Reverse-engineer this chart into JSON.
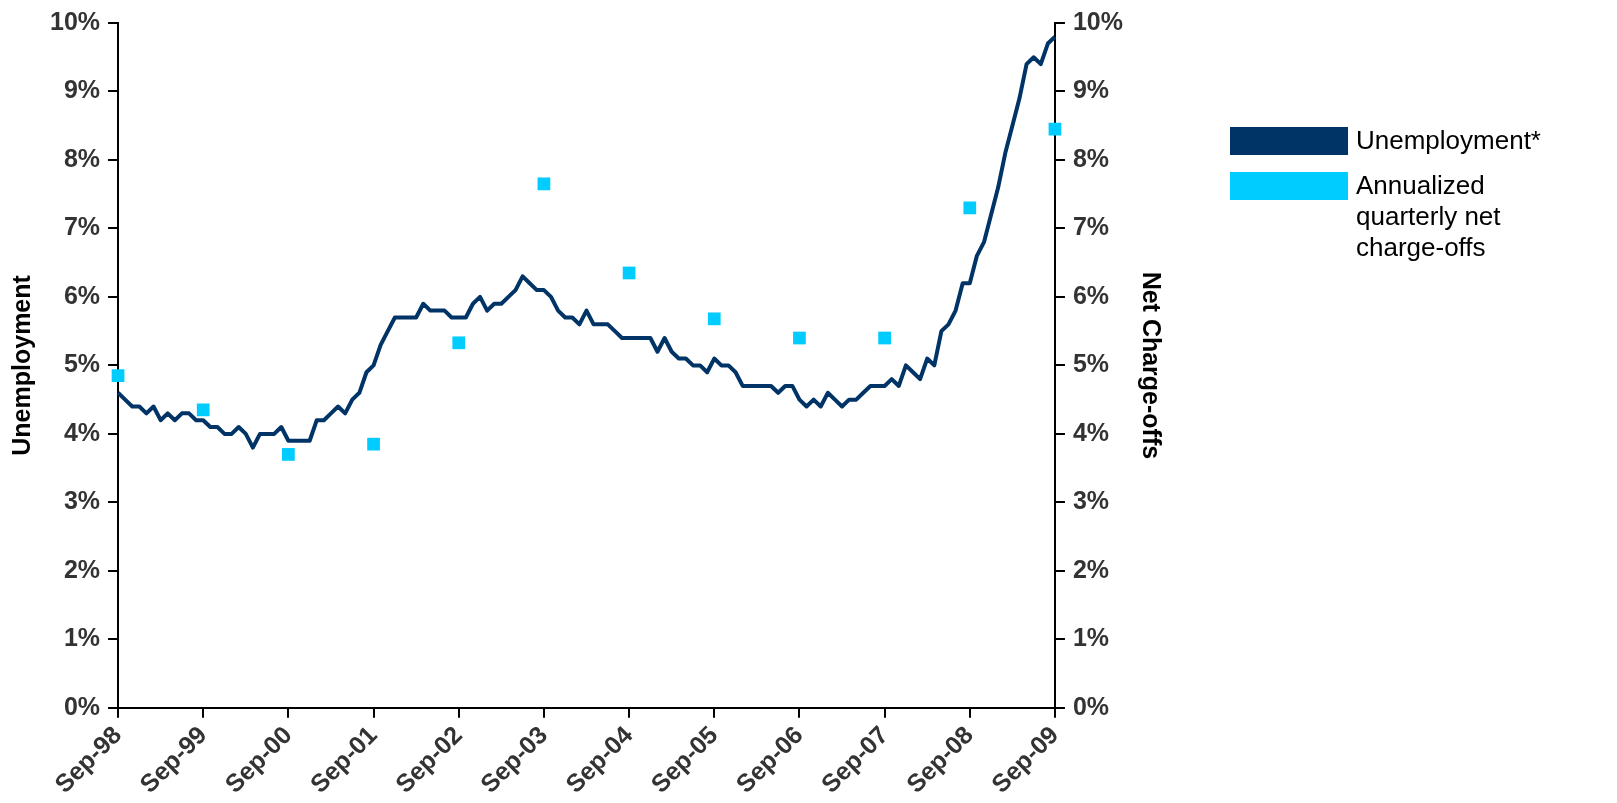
{
  "chart_data": {
    "type": "line",
    "ylabel": "Unemployment",
    "y2label": "Net Charge-offs",
    "legend": "right",
    "categories": [
      "Sep-98",
      null,
      null,
      null,
      null,
      null,
      null,
      null,
      null,
      null,
      null,
      null,
      "Sep-99",
      null,
      null,
      null,
      null,
      null,
      null,
      null,
      null,
      null,
      null,
      null,
      "Sep-00",
      null,
      null,
      null,
      null,
      null,
      null,
      null,
      null,
      null,
      null,
      null,
      "Sep-01",
      null,
      null,
      null,
      null,
      null,
      null,
      null,
      null,
      null,
      null,
      null,
      "Sep-02",
      null,
      null,
      null,
      null,
      null,
      null,
      null,
      null,
      null,
      null,
      null,
      "Sep-03",
      null,
      null,
      null,
      null,
      null,
      null,
      null,
      null,
      null,
      null,
      null,
      "Sep-04",
      null,
      null,
      null,
      null,
      null,
      null,
      null,
      null,
      null,
      null,
      null,
      "Sep-05",
      null,
      null,
      null,
      null,
      null,
      null,
      null,
      null,
      null,
      null,
      null,
      "Sep-06",
      null,
      null,
      null,
      null,
      null,
      null,
      null,
      null,
      null,
      null,
      null,
      "Sep-07",
      null,
      null,
      null,
      null,
      null,
      null,
      null,
      null,
      null,
      null,
      null,
      "Sep-08",
      null,
      null,
      null,
      null,
      null,
      null,
      null,
      null,
      null,
      null,
      null,
      "Sep-09"
    ],
    "series": [
      {
        "name": "Unemployment*",
        "type": "line",
        "color": "#003366",
        "marker": "none",
        "values": [
          4.6,
          4.5,
          4.4,
          4.4,
          4.3,
          4.4,
          4.2,
          4.3,
          4.2,
          4.3,
          4.3,
          4.2,
          4.2,
          4.1,
          4.1,
          4.0,
          4.0,
          4.1,
          4.0,
          3.8,
          4.0,
          4.0,
          4.0,
          4.1,
          3.9,
          3.9,
          3.9,
          3.9,
          4.2,
          4.2,
          4.3,
          4.4,
          4.3,
          4.5,
          4.6,
          4.9,
          5.0,
          5.3,
          5.5,
          5.7,
          5.7,
          5.7,
          5.7,
          5.9,
          5.8,
          5.8,
          5.8,
          5.7,
          5.7,
          5.7,
          5.9,
          6.0,
          5.8,
          5.9,
          5.9,
          6.0,
          6.1,
          6.3,
          6.2,
          6.1,
          6.1,
          6.0,
          5.8,
          5.7,
          5.7,
          5.6,
          5.8,
          5.6,
          5.6,
          5.6,
          5.5,
          5.4,
          5.4,
          5.4,
          5.4,
          5.4,
          5.2,
          5.4,
          5.2,
          5.1,
          5.1,
          5.0,
          5.0,
          4.9,
          5.1,
          5.0,
          5.0,
          4.9,
          4.7,
          4.7,
          4.7,
          4.7,
          4.7,
          4.6,
          4.7,
          4.7,
          4.5,
          4.4,
          4.5,
          4.4,
          4.6,
          4.5,
          4.4,
          4.5,
          4.5,
          4.6,
          4.7,
          4.7,
          4.7,
          4.8,
          4.7,
          5.0,
          4.9,
          4.8,
          5.1,
          5.0,
          5.5,
          5.6,
          5.8,
          6.2,
          6.2,
          6.6,
          6.8,
          7.2,
          7.6,
          8.1,
          8.5,
          8.9,
          9.4,
          9.5,
          9.4,
          9.7,
          9.8
        ]
      },
      {
        "name": "Annualized quarterly net charge-offs",
        "type": "scatter",
        "axis": "y2",
        "color": "#00ccff",
        "marker": "square",
        "values": [
          4.85,
          null,
          null,
          null,
          null,
          null,
          null,
          null,
          null,
          null,
          null,
          null,
          4.35,
          null,
          null,
          null,
          null,
          null,
          null,
          null,
          null,
          null,
          null,
          null,
          3.7,
          null,
          null,
          null,
          null,
          null,
          null,
          null,
          null,
          null,
          null,
          null,
          3.85,
          null,
          null,
          null,
          null,
          null,
          null,
          null,
          null,
          null,
          null,
          null,
          5.33,
          null,
          null,
          null,
          null,
          null,
          null,
          null,
          null,
          null,
          null,
          null,
          7.65,
          null,
          null,
          null,
          null,
          null,
          null,
          null,
          null,
          null,
          null,
          null,
          6.35,
          null,
          null,
          null,
          null,
          null,
          null,
          null,
          null,
          null,
          null,
          null,
          5.68,
          null,
          null,
          null,
          null,
          null,
          null,
          null,
          null,
          null,
          null,
          null,
          5.4,
          null,
          null,
          null,
          null,
          null,
          null,
          null,
          null,
          null,
          null,
          null,
          5.4,
          null,
          null,
          null,
          null,
          null,
          null,
          null,
          null,
          null,
          null,
          null,
          7.3,
          null,
          null,
          null,
          null,
          null,
          null,
          null,
          null,
          null,
          null,
          null,
          8.45
        ]
      }
    ],
    "ylim": [
      0,
      10
    ],
    "yticks": [
      {
        "value": 0,
        "label": "0%"
      },
      {
        "value": 1,
        "label": "1%"
      },
      {
        "value": 2,
        "label": "2%"
      },
      {
        "value": 3,
        "label": "3%"
      },
      {
        "value": 4,
        "label": "4%"
      },
      {
        "value": 5,
        "label": "5%"
      },
      {
        "value": 6,
        "label": "6%"
      },
      {
        "value": 7,
        "label": "7%"
      },
      {
        "value": 8,
        "label": "8%"
      },
      {
        "value": 9,
        "label": "9%"
      },
      {
        "value": 10,
        "label": "10%"
      }
    ],
    "y2lim": [
      0,
      10
    ],
    "y2ticks": [
      {
        "value": 0,
        "label": "0%"
      },
      {
        "value": 1,
        "label": "1%"
      },
      {
        "value": 2,
        "label": "2%"
      },
      {
        "value": 3,
        "label": "3%"
      },
      {
        "value": 4,
        "label": "4%"
      },
      {
        "value": 5,
        "label": "5%"
      },
      {
        "value": 6,
        "label": "6%"
      },
      {
        "value": 7,
        "label": "7%"
      },
      {
        "value": 8,
        "label": "8%"
      },
      {
        "value": 9,
        "label": "9%"
      },
      {
        "value": 10,
        "label": "10%"
      }
    ]
  }
}
